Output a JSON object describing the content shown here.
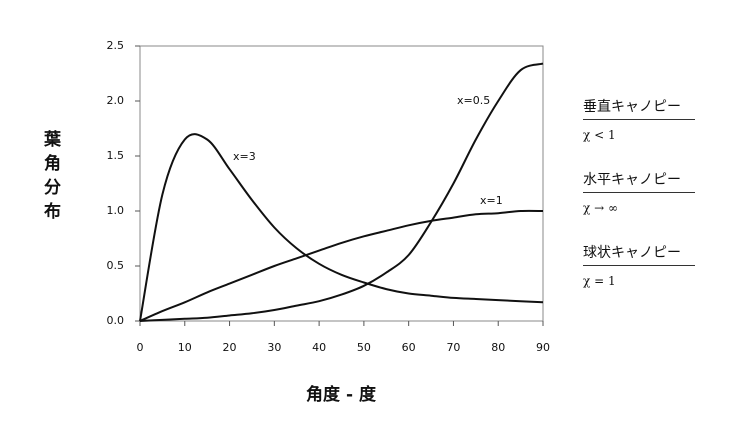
{
  "chart_data": {
    "type": "line",
    "y_label": "葉角分布",
    "x_label": "角度 - 度",
    "x": [
      0,
      5,
      10,
      15,
      20,
      25,
      30,
      35,
      40,
      45,
      50,
      55,
      60,
      65,
      70,
      75,
      80,
      85,
      90
    ],
    "series": [
      {
        "name": "x=3",
        "color": "#111111",
        "values": [
          0,
          1.15,
          1.65,
          1.65,
          1.38,
          1.1,
          0.85,
          0.66,
          0.52,
          0.42,
          0.35,
          0.29,
          0.25,
          0.23,
          0.21,
          0.2,
          0.19,
          0.18,
          0.17
        ]
      },
      {
        "name": "x=0.5",
        "color": "#111111",
        "values": [
          0,
          0.01,
          0.02,
          0.03,
          0.05,
          0.07,
          0.1,
          0.14,
          0.18,
          0.24,
          0.32,
          0.44,
          0.6,
          0.9,
          1.25,
          1.65,
          2.0,
          2.28,
          2.34
        ]
      },
      {
        "name": "x=1",
        "color": "#111111",
        "values": [
          0,
          0.09,
          0.17,
          0.26,
          0.34,
          0.42,
          0.5,
          0.57,
          0.64,
          0.71,
          0.77,
          0.82,
          0.87,
          0.91,
          0.94,
          0.97,
          0.98,
          1.0,
          1.0
        ]
      }
    ],
    "xlim": [
      0,
      90
    ],
    "xticks": [
      0,
      10,
      20,
      30,
      40,
      50,
      60,
      70,
      80,
      90
    ],
    "ylim": [
      0,
      2.5
    ],
    "yticks": [
      {
        "value": 0,
        "label": "0.0"
      },
      {
        "value": 0.5,
        "label": "0.5"
      },
      {
        "value": 1,
        "label": "1.0"
      },
      {
        "value": 1.5,
        "label": "1.5"
      },
      {
        "value": 2,
        "label": "2.0"
      },
      {
        "value": 2.5,
        "label": "2.5"
      }
    ],
    "grid": false
  },
  "panel": [
    {
      "title": "垂直キャノピー",
      "formula": "χ < 1"
    },
    {
      "title": "水平キャノピー",
      "formula": "χ → ∞"
    },
    {
      "title": "球状キャノピー",
      "formula": "χ = 1"
    }
  ]
}
